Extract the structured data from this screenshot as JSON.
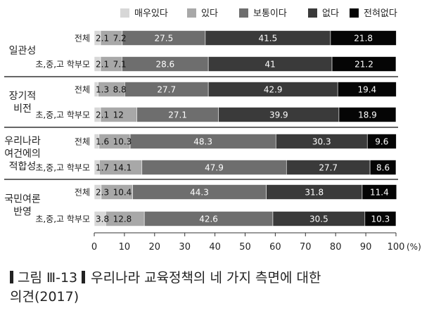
{
  "chart_data": {
    "type": "bar",
    "stacked": "horizontal-100",
    "legend": [
      {
        "name": "매우있다",
        "color": "#d7d7d7"
      },
      {
        "name": "있다",
        "color": "#a8a8a8"
      },
      {
        "name": "보통이다",
        "color": "#6e6e6e"
      },
      {
        "name": "없다",
        "color": "#3a3a3a"
      },
      {
        "name": "전혀없다",
        "color": "#050505"
      }
    ],
    "legend_position": "top-right",
    "groups": [
      {
        "label": [
          "일관성"
        ],
        "rows": [
          {
            "label": "전체",
            "values": [
              2.1,
              7.2,
              27.5,
              41.5,
              21.8
            ]
          },
          {
            "label": "초,중,고 학부모",
            "values": [
              2.1,
              7.1,
              28.6,
              41.0,
              21.2
            ]
          }
        ]
      },
      {
        "label": [
          "장기적",
          "비전"
        ],
        "rows": [
          {
            "label": "전체",
            "values": [
              1.3,
              8.8,
              27.7,
              42.9,
              19.4
            ]
          },
          {
            "label": "초,중,고 학부모",
            "values": [
              2.1,
              12.0,
              27.1,
              39.9,
              18.9
            ]
          }
        ]
      },
      {
        "label": [
          "우리나라",
          "여건에의",
          "적합성"
        ],
        "rows": [
          {
            "label": "전체",
            "values": [
              1.6,
              10.3,
              48.3,
              30.3,
              9.6
            ]
          },
          {
            "label": "초,중,고 학부모",
            "values": [
              1.7,
              14.1,
              47.9,
              27.7,
              8.6
            ]
          }
        ]
      },
      {
        "label": [
          "국민여론",
          "반영"
        ],
        "rows": [
          {
            "label": "전체",
            "values": [
              2.3,
              10.4,
              44.3,
              31.8,
              11.4
            ]
          },
          {
            "label": "초,중,고 학부모",
            "values": [
              3.8,
              12.8,
              42.6,
              30.5,
              10.3
            ]
          }
        ]
      }
    ],
    "x_ticks": [
      "0",
      "10",
      "20",
      "30",
      "40",
      "50",
      "60",
      "70",
      "80",
      "90",
      "100"
    ],
    "x_unit": "(%)",
    "xlim": [
      0,
      100
    ]
  },
  "caption": {
    "fig_label": "그림  Ⅲ-13",
    "line1": "우리나라 교육정책의 네 가지 측면에 대한",
    "line2": "의견(2017)"
  }
}
